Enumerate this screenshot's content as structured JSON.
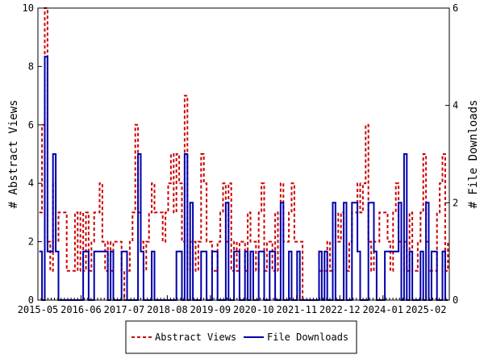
{
  "chart_data": {
    "type": "line",
    "title": "",
    "xlabel": "",
    "ylabel_left": "# Abstract Views",
    "ylabel_right": "# File Downloads",
    "ylim_left": [
      0,
      10
    ],
    "ylim_right": [
      0,
      6
    ],
    "yticks_left": [
      "0",
      "2",
      "4",
      "6",
      "8",
      "10"
    ],
    "yticks_right": [
      "0",
      "2",
      "4",
      "6"
    ],
    "x_tick_labels": [
      "2015-05",
      "2016-06",
      "2017-07",
      "2018-08",
      "2019-09",
      "2020-10",
      "2021-11",
      "2022-12",
      "2024-01",
      "2025-02"
    ],
    "x_start": "2015-05",
    "x_end": "2025-09",
    "grid": false,
    "legend_position": "bottom",
    "series": [
      {
        "name": "Abstract Views",
        "axis": "left",
        "color": "#cc0000",
        "style": "dashed",
        "values": [
          3,
          6,
          10,
          2,
          1,
          4,
          2,
          3,
          3,
          3,
          1,
          1,
          1,
          3,
          1,
          3,
          1,
          3,
          1,
          2,
          3,
          3,
          4,
          2,
          1,
          2,
          1,
          2,
          2,
          2,
          1,
          0,
          1,
          2,
          3,
          6,
          3,
          2,
          1,
          2,
          3,
          4,
          3,
          3,
          3,
          2,
          3,
          4,
          5,
          3,
          5,
          4,
          2,
          7,
          1,
          2,
          2,
          1,
          2,
          5,
          4,
          2,
          2,
          1,
          1,
          2,
          3,
          4,
          2,
          4,
          1,
          2,
          1,
          2,
          2,
          1,
          3,
          2,
          2,
          1,
          3,
          4,
          1,
          2,
          2,
          1,
          3,
          1,
          4,
          2,
          2,
          3,
          4,
          2,
          2,
          2,
          0,
          0,
          0,
          0,
          0,
          0,
          1,
          1,
          1,
          2,
          1,
          1,
          3,
          2,
          3,
          1,
          1,
          2,
          3,
          3,
          4,
          3,
          4,
          6,
          2,
          1,
          2,
          2,
          3,
          3,
          3,
          2,
          1,
          3,
          4,
          2,
          1,
          2,
          1,
          3,
          1,
          1,
          2,
          3,
          5,
          2,
          1,
          1,
          1,
          3,
          4,
          5,
          1,
          2
        ]
      },
      {
        "name": "File Downloads",
        "axis": "right",
        "color": "#0000aa",
        "style": "solid",
        "values": [
          1,
          0,
          5,
          1,
          1,
          3,
          1,
          0,
          0,
          0,
          0,
          0,
          0,
          0,
          0,
          0,
          1,
          1,
          0,
          0,
          1,
          1,
          1,
          1,
          1,
          0,
          1,
          0,
          0,
          0,
          1,
          1,
          0,
          0,
          0,
          0,
          3,
          1,
          0,
          0,
          0,
          1,
          0,
          0,
          0,
          0,
          0,
          0,
          0,
          0,
          1,
          1,
          0,
          3,
          0,
          2,
          0,
          0,
          0,
          1,
          1,
          0,
          0,
          1,
          1,
          0,
          0,
          0,
          2,
          0,
          0,
          1,
          1,
          0,
          0,
          1,
          0,
          1,
          0,
          0,
          1,
          1,
          0,
          0,
          1,
          1,
          0,
          0,
          2,
          0,
          0,
          1,
          0,
          0,
          1,
          0,
          0,
          0,
          0,
          0,
          0,
          0,
          1,
          0,
          1,
          0,
          0,
          2,
          0,
          0,
          0,
          2,
          0,
          0,
          2,
          2,
          1,
          0,
          0,
          0,
          2,
          2,
          1,
          0,
          0,
          0,
          1,
          1,
          1,
          1,
          1,
          2,
          0,
          3,
          0,
          1,
          0,
          0,
          0,
          1,
          0,
          2,
          0,
          1,
          1,
          0,
          0,
          1,
          0,
          0
        ]
      }
    ]
  }
}
